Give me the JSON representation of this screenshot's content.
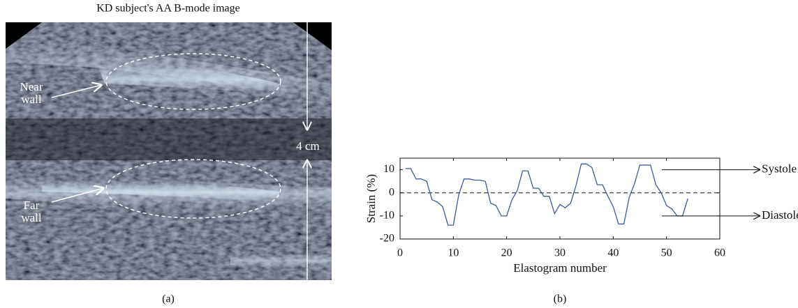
{
  "image_panel": {
    "title": "KD subject's AA B-mode image",
    "near_wall_label": [
      "Near",
      "wall"
    ],
    "far_wall_label": [
      "Far",
      "wall"
    ],
    "scale_label": "4 cm",
    "caption": "(a)"
  },
  "chart_data": {
    "type": "line",
    "caption": "(b)",
    "x_label": "Elastogram number",
    "y_label": "Strain (%)",
    "color": "#3a5ba0",
    "x": [
      1,
      2,
      3,
      4,
      5,
      6,
      7,
      8,
      9,
      10,
      11,
      12,
      13,
      14,
      15,
      16,
      17,
      18,
      19,
      20,
      21,
      22,
      23,
      24,
      25,
      26,
      27,
      28,
      29,
      30,
      31,
      32,
      33,
      34,
      35,
      36,
      37,
      38,
      39,
      40,
      41,
      42,
      43,
      44,
      45,
      46,
      47,
      48,
      49,
      50,
      51,
      52,
      53,
      54
    ],
    "values": [
      10.5,
      10.5,
      6,
      6,
      5,
      -3,
      -4,
      -6,
      -14,
      -14,
      -1,
      6,
      6,
      5.5,
      5.5,
      5,
      -4.5,
      -5.5,
      -10,
      -10,
      -3,
      1,
      9.5,
      9.5,
      2,
      2,
      -1.5,
      -1.5,
      -9,
      -5,
      -6.5,
      -4.5,
      3,
      12.5,
      12.5,
      11,
      3.5,
      3.5,
      -1.5,
      -6,
      -13.5,
      -13.5,
      -2,
      4,
      12,
      12,
      12,
      3.5,
      0,
      -5.5,
      -7,
      -10,
      -10,
      -2.5
    ],
    "xlim": [
      0,
      60
    ],
    "ylim": [
      -20,
      15
    ],
    "xticks": [
      0,
      10,
      20,
      30,
      40,
      50,
      60
    ],
    "yticks": [
      -20,
      -10,
      0,
      10
    ],
    "reference_line": 0,
    "annotations": [
      {
        "text": "Systole",
        "y": 10
      },
      {
        "text": "Diastole",
        "y": -10
      }
    ]
  }
}
